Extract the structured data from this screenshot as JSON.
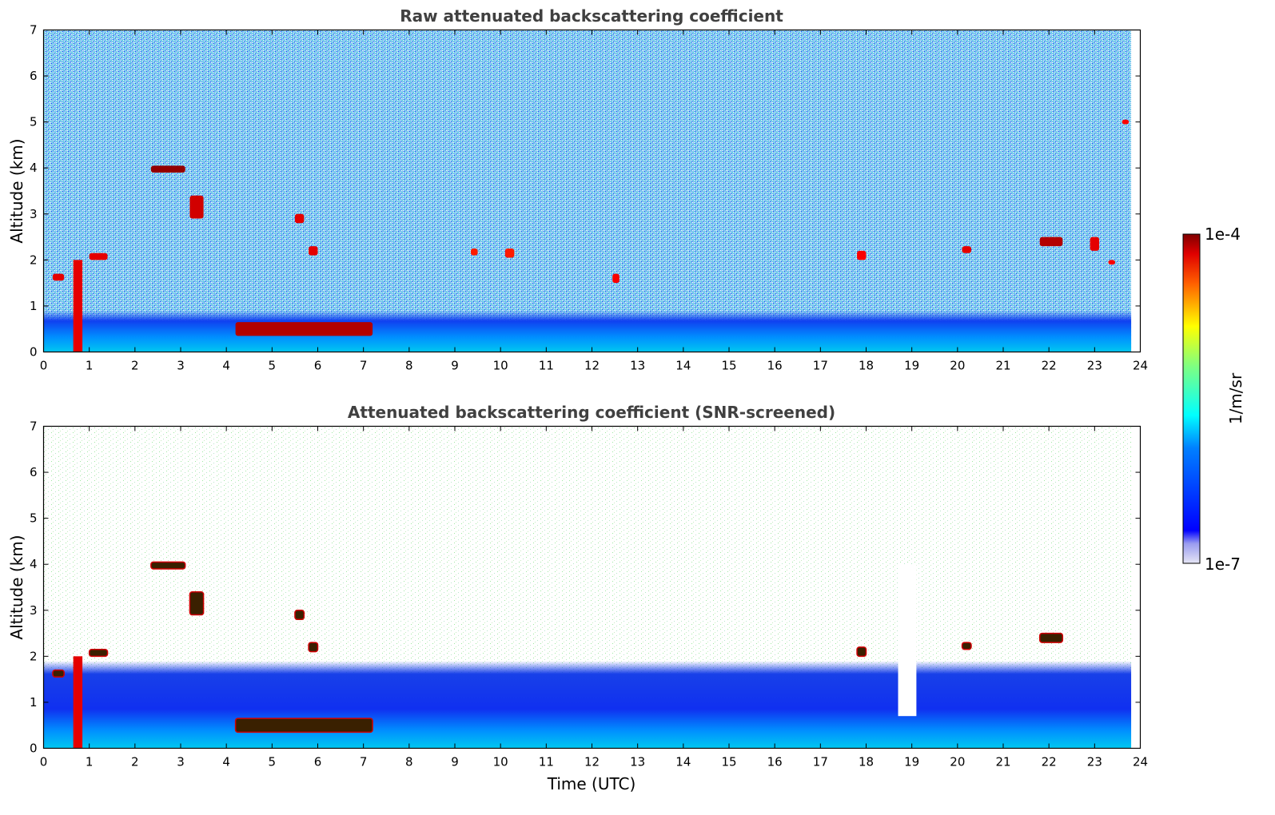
{
  "chart_data": [
    {
      "type": "heatmap",
      "title": "Raw attenuated backscattering coefficient",
      "xlabel": "",
      "ylabel": "Altitude (km)",
      "xlim": [
        0,
        24
      ],
      "ylim": [
        0,
        7
      ],
      "xticks": [
        "0",
        "1",
        "2",
        "3",
        "4",
        "5",
        "6",
        "7",
        "8",
        "9",
        "10",
        "11",
        "12",
        "13",
        "14",
        "15",
        "16",
        "17",
        "18",
        "19",
        "20",
        "21",
        "22",
        "23",
        "24"
      ],
      "yticks": [
        "0",
        "1",
        "2",
        "3",
        "4",
        "5",
        "6",
        "7"
      ],
      "data_end_time": 23.8,
      "features": [
        {
          "name": "boundary-layer",
          "t0": 0,
          "t1": 23.8,
          "alt0": 0,
          "alt1": 0.9,
          "level": 0.28
        },
        {
          "name": "residual-layer",
          "t0": 4.2,
          "t1": 7.2,
          "alt0": 0.35,
          "alt1": 0.65,
          "level": 0.95
        },
        {
          "name": "low-cloud",
          "t0": 0.65,
          "t1": 0.85,
          "alt0": 0,
          "alt1": 2.0,
          "level": 0.9
        },
        {
          "name": "cloud",
          "t0": 2.35,
          "t1": 3.1,
          "alt0": 3.9,
          "alt1": 4.05,
          "level": 0.98
        },
        {
          "name": "cloud",
          "t0": 3.2,
          "t1": 3.5,
          "alt0": 2.9,
          "alt1": 3.4,
          "level": 0.92
        },
        {
          "name": "cloud",
          "t0": 0.2,
          "t1": 0.45,
          "alt0": 1.55,
          "alt1": 1.7,
          "level": 0.9
        },
        {
          "name": "cloud",
          "t0": 1.0,
          "t1": 1.4,
          "alt0": 2.0,
          "alt1": 2.15,
          "level": 0.9
        },
        {
          "name": "cloud",
          "t0": 5.5,
          "t1": 5.7,
          "alt0": 2.8,
          "alt1": 3.0,
          "level": 0.9
        },
        {
          "name": "cloud",
          "t0": 5.8,
          "t1": 6.0,
          "alt0": 2.1,
          "alt1": 2.3,
          "level": 0.9
        },
        {
          "name": "cloud",
          "t0": 9.35,
          "t1": 9.5,
          "alt0": 2.1,
          "alt1": 2.25,
          "level": 0.85
        },
        {
          "name": "cloud",
          "t0": 10.1,
          "t1": 10.3,
          "alt0": 2.05,
          "alt1": 2.25,
          "level": 0.85
        },
        {
          "name": "cloud",
          "t0": 12.45,
          "t1": 12.6,
          "alt0": 1.5,
          "alt1": 1.7,
          "level": 0.88
        },
        {
          "name": "cloud",
          "t0": 17.8,
          "t1": 18.0,
          "alt0": 2.0,
          "alt1": 2.2,
          "level": 0.88
        },
        {
          "name": "cloud",
          "t0": 20.1,
          "t1": 20.3,
          "alt0": 2.15,
          "alt1": 2.3,
          "level": 0.9
        },
        {
          "name": "cloud",
          "t0": 21.8,
          "t1": 22.3,
          "alt0": 2.3,
          "alt1": 2.5,
          "level": 0.95
        },
        {
          "name": "cloud",
          "t0": 22.9,
          "t1": 23.1,
          "alt0": 2.2,
          "alt1": 2.5,
          "level": 0.9
        },
        {
          "name": "cloud",
          "t0": 23.3,
          "t1": 23.45,
          "alt0": 1.9,
          "alt1": 2.0,
          "level": 0.88
        },
        {
          "name": "cloud",
          "t0": 23.6,
          "t1": 23.75,
          "alt0": 4.95,
          "alt1": 5.05,
          "level": 0.88
        }
      ]
    },
    {
      "type": "heatmap",
      "title": "Attenuated backscattering coefficient (SNR-screened)",
      "xlabel": "Time (UTC)",
      "ylabel": "Altitude (km)",
      "xlim": [
        0,
        24
      ],
      "ylim": [
        0,
        7
      ],
      "xticks": [
        "0",
        "1",
        "2",
        "3",
        "4",
        "5",
        "6",
        "7",
        "8",
        "9",
        "10",
        "11",
        "12",
        "13",
        "14",
        "15",
        "16",
        "17",
        "18",
        "19",
        "20",
        "21",
        "22",
        "23",
        "24"
      ],
      "yticks": [
        "0",
        "1",
        "2",
        "3",
        "4",
        "5",
        "6",
        "7"
      ],
      "data_end_time": 23.8,
      "screened": true,
      "features": [
        {
          "name": "boundary-layer",
          "t0": 0,
          "t1": 23.8,
          "alt0": 0,
          "alt1": 1.9,
          "level": 0.22
        },
        {
          "name": "residual-layer",
          "t0": 4.2,
          "t1": 7.2,
          "alt0": 0.35,
          "alt1": 0.65,
          "level": 1.0
        },
        {
          "name": "low-cloud",
          "t0": 0.65,
          "t1": 0.85,
          "alt0": 0,
          "alt1": 2.0,
          "level": 0.9
        },
        {
          "name": "cloud",
          "t0": 2.35,
          "t1": 3.1,
          "alt0": 3.9,
          "alt1": 4.05,
          "level": 1.0
        },
        {
          "name": "cloud",
          "t0": 3.2,
          "t1": 3.5,
          "alt0": 2.9,
          "alt1": 3.4,
          "level": 1.0
        },
        {
          "name": "cloud",
          "t0": 0.2,
          "t1": 0.45,
          "alt0": 1.55,
          "alt1": 1.7,
          "level": 1.0
        },
        {
          "name": "cloud",
          "t0": 1.0,
          "t1": 1.4,
          "alt0": 2.0,
          "alt1": 2.15,
          "level": 1.0
        },
        {
          "name": "cloud",
          "t0": 5.5,
          "t1": 5.7,
          "alt0": 2.8,
          "alt1": 3.0,
          "level": 1.0
        },
        {
          "name": "cloud",
          "t0": 5.8,
          "t1": 6.0,
          "alt0": 2.1,
          "alt1": 2.3,
          "level": 1.0
        },
        {
          "name": "cloud",
          "t0": 21.8,
          "t1": 22.3,
          "alt0": 2.3,
          "alt1": 2.5,
          "level": 1.0
        },
        {
          "name": "cloud",
          "t0": 20.1,
          "t1": 20.3,
          "alt0": 2.15,
          "alt1": 2.3,
          "level": 1.0
        },
        {
          "name": "cloud",
          "t0": 17.8,
          "t1": 18.0,
          "alt0": 2.0,
          "alt1": 2.2,
          "level": 1.0
        },
        {
          "name": "gap",
          "t0": 18.7,
          "t1": 19.1,
          "alt0": 0.7,
          "alt1": 4.0,
          "level": -1
        }
      ]
    }
  ],
  "colorbar": {
    "label": "1/m/sr",
    "max_label": "1e-4",
    "min_label": "1e-7",
    "colormap": "jet",
    "scale": "log"
  }
}
